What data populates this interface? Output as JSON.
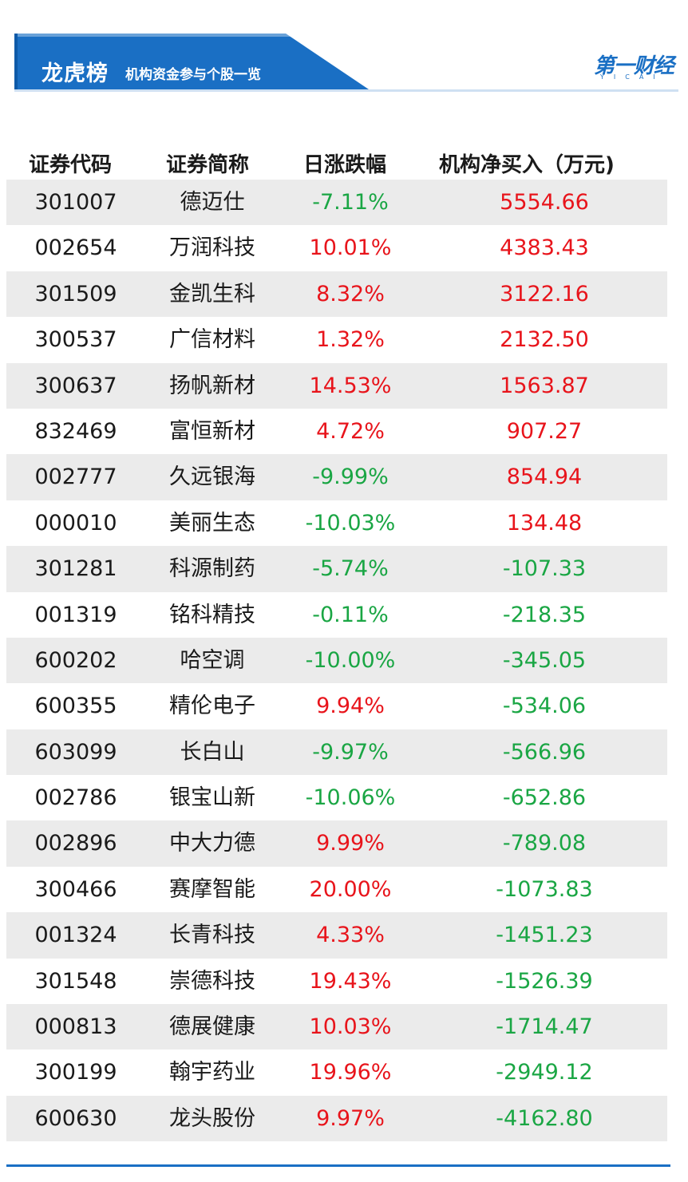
{
  "header": {
    "title": "龙虎榜",
    "subtitle": "机构资金参与个股一览",
    "logo": "第一财经",
    "logo_sub": "YICAI",
    "colors": {
      "banner": "#1a6fc4",
      "banner_light": "#cfe0f2",
      "up": "#e8141b",
      "down": "#1aa644"
    }
  },
  "table": {
    "columns": [
      "证券代码",
      "证券简称",
      "日涨跌幅",
      "机构净买入（万元)"
    ],
    "rows": [
      {
        "code": "301007",
        "name": "德迈仕",
        "change": "-7.11%",
        "net_buy": "5554.66"
      },
      {
        "code": "002654",
        "name": "万润科技",
        "change": "10.01%",
        "net_buy": "4383.43"
      },
      {
        "code": "301509",
        "name": "金凯生科",
        "change": "8.32%",
        "net_buy": "3122.16"
      },
      {
        "code": "300537",
        "name": "广信材料",
        "change": "1.32%",
        "net_buy": "2132.50"
      },
      {
        "code": "300637",
        "name": "扬帆新材",
        "change": "14.53%",
        "net_buy": "1563.87"
      },
      {
        "code": "832469",
        "name": "富恒新材",
        "change": "4.72%",
        "net_buy": "907.27"
      },
      {
        "code": "002777",
        "name": "久远银海",
        "change": "-9.99%",
        "net_buy": "854.94"
      },
      {
        "code": "000010",
        "name": "美丽生态",
        "change": "-10.03%",
        "net_buy": "134.48"
      },
      {
        "code": "301281",
        "name": "科源制药",
        "change": "-5.74%",
        "net_buy": "-107.33"
      },
      {
        "code": "001319",
        "name": "铭科精技",
        "change": "-0.11%",
        "net_buy": "-218.35"
      },
      {
        "code": "600202",
        "name": "哈空调",
        "change": "-10.00%",
        "net_buy": "-345.05"
      },
      {
        "code": "600355",
        "name": "精伦电子",
        "change": "9.94%",
        "net_buy": "-534.06"
      },
      {
        "code": "603099",
        "name": "长白山",
        "change": "-9.97%",
        "net_buy": "-566.96"
      },
      {
        "code": "002786",
        "name": "银宝山新",
        "change": "-10.06%",
        "net_buy": "-652.86"
      },
      {
        "code": "002896",
        "name": "中大力德",
        "change": "9.99%",
        "net_buy": "-789.08"
      },
      {
        "code": "300466",
        "name": "赛摩智能",
        "change": "20.00%",
        "net_buy": "-1073.83"
      },
      {
        "code": "001324",
        "name": "长青科技",
        "change": "4.33%",
        "net_buy": "-1451.23"
      },
      {
        "code": "301548",
        "name": "崇德科技",
        "change": "19.43%",
        "net_buy": "-1526.39"
      },
      {
        "code": "000813",
        "name": "德展健康",
        "change": "10.03%",
        "net_buy": "-1714.47"
      },
      {
        "code": "300199",
        "name": "翰宇药业",
        "change": "19.96%",
        "net_buy": "-2949.12"
      },
      {
        "code": "600630",
        "name": "龙头股份",
        "change": "9.97%",
        "net_buy": "-4162.80"
      }
    ]
  }
}
